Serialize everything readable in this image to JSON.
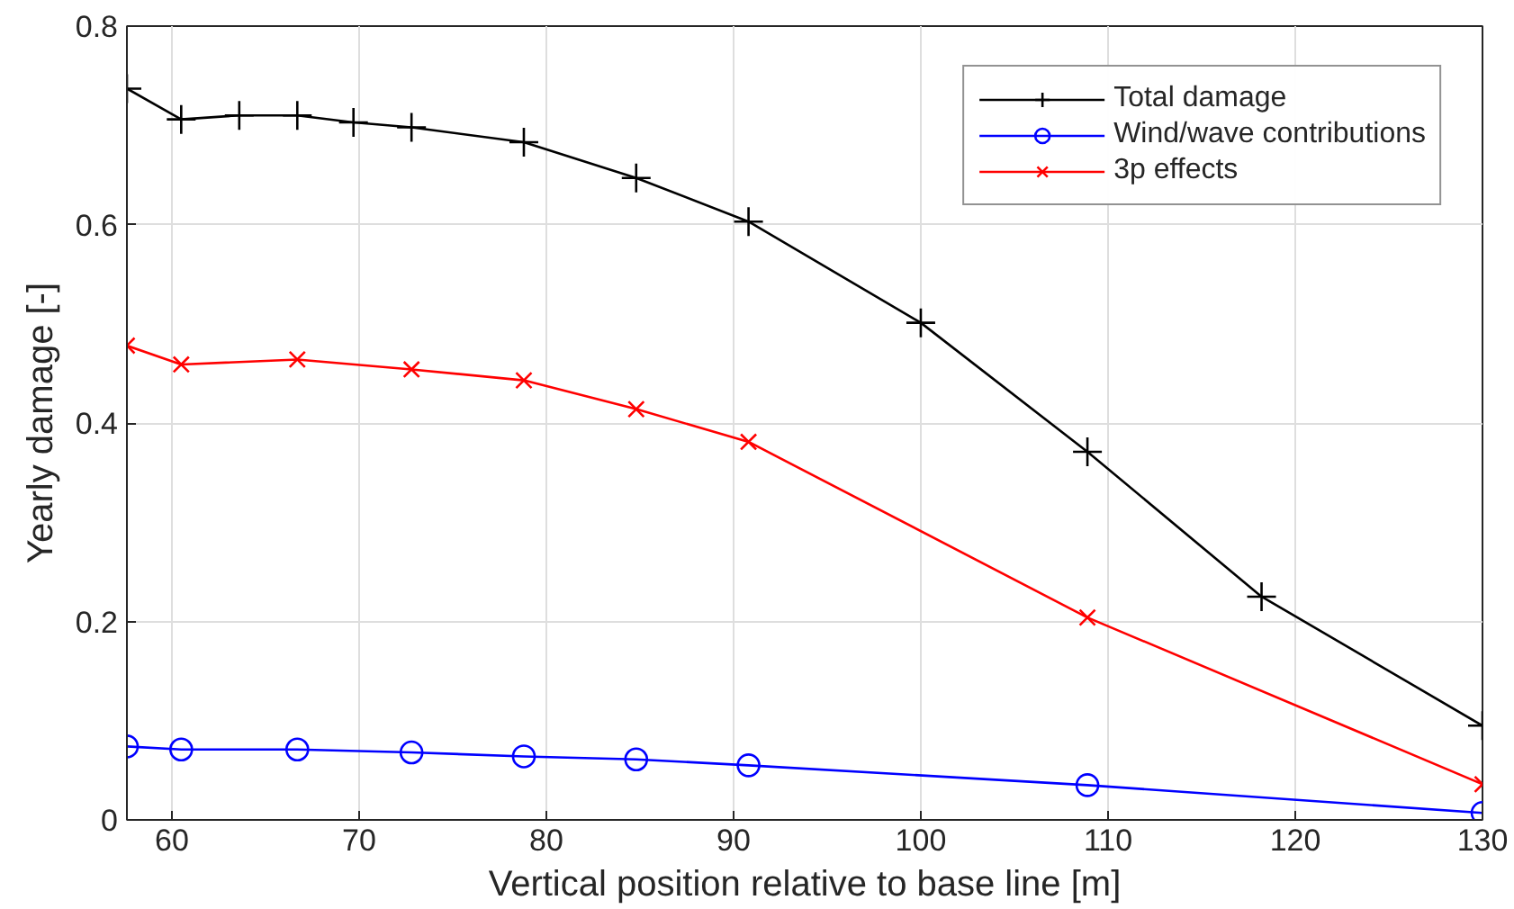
{
  "chart_data": {
    "type": "line",
    "xlabel": "Vertical position relative to base line [m]",
    "ylabel": "Yearly damage [-]",
    "xlim": [
      57.6,
      130
    ],
    "xticks": [
      60,
      70,
      80,
      90,
      100,
      110,
      120,
      130
    ],
    "ylim": [
      0,
      0.8
    ],
    "yticks": [
      0,
      0.2,
      0.4,
      0.6,
      0.8
    ],
    "grid": true,
    "legend": "top right",
    "series": [
      {
        "name": "Total damage",
        "color": "#000000",
        "marker": "cross",
        "x": [
          57.6,
          60.5,
          63.6,
          66.7,
          69.7,
          72.8,
          78.8,
          84.8,
          90.8,
          100.0,
          108.9,
          118.2,
          130
        ],
        "values": [
          0.737,
          0.706,
          0.71,
          0.71,
          0.703,
          0.698,
          0.683,
          0.647,
          0.603,
          0.501,
          0.371,
          0.225,
          0.095
        ]
      },
      {
        "name": "Wind/wave contributions",
        "color": "#0000ff",
        "marker": "circle",
        "x": [
          57.6,
          60.5,
          66.7,
          72.8,
          78.8,
          84.8,
          90.8,
          108.9,
          130
        ],
        "values": [
          0.074,
          0.071,
          0.071,
          0.068,
          0.064,
          0.061,
          0.055,
          0.035,
          0.007
        ]
      },
      {
        "name": "3p effects",
        "color": "#ff0000",
        "marker": "x",
        "x": [
          57.6,
          60.5,
          66.7,
          72.8,
          78.8,
          84.8,
          90.8,
          108.9,
          130
        ],
        "values": [
          0.478,
          0.459,
          0.464,
          0.454,
          0.443,
          0.414,
          0.381,
          0.204,
          0.036
        ]
      }
    ]
  }
}
